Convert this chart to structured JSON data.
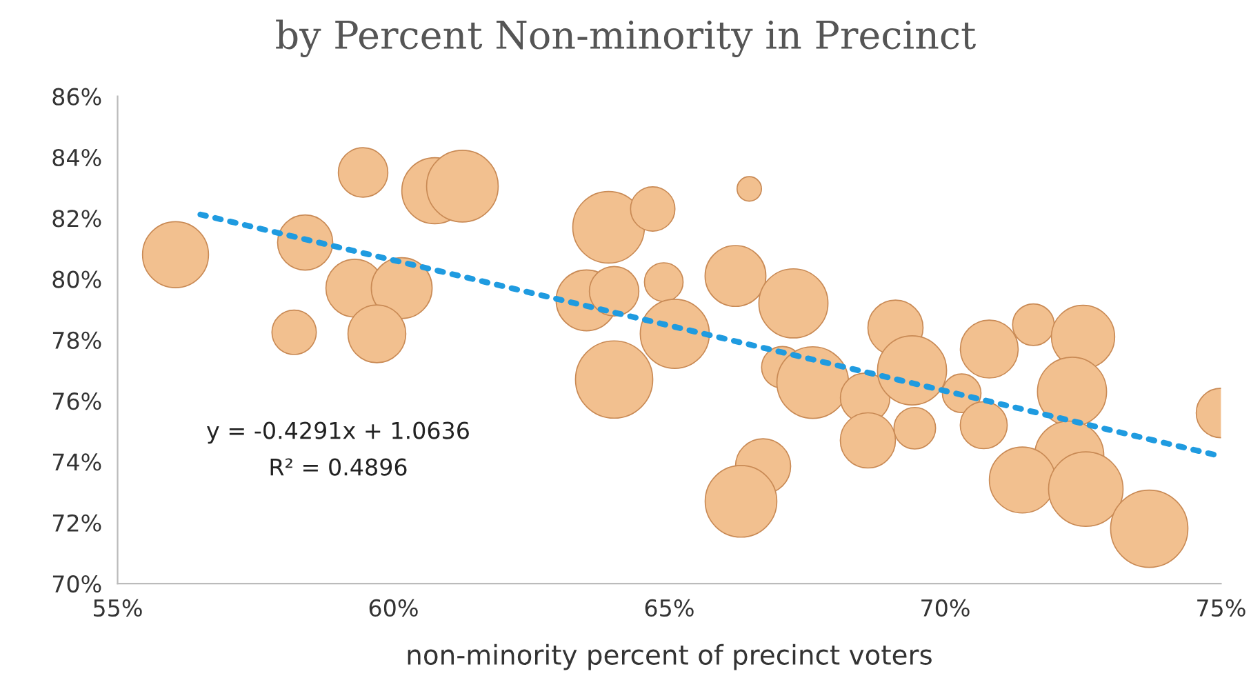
{
  "chart_data": {
    "type": "bubble",
    "title": "by Percent Non-minority in Precinct",
    "xlabel": "non-minority percent of precinct voters",
    "xlim": [
      55,
      75
    ],
    "ylim": [
      70,
      86
    ],
    "xticks": [
      {
        "value": 55,
        "label": "55%"
      },
      {
        "value": 60,
        "label": "60%"
      },
      {
        "value": 65,
        "label": "65%"
      },
      {
        "value": 70,
        "label": "70%"
      },
      {
        "value": 75,
        "label": "75%"
      }
    ],
    "yticks": [
      {
        "value": 70,
        "label": "70%"
      },
      {
        "value": 72,
        "label": "72%"
      },
      {
        "value": 74,
        "label": "74%"
      },
      {
        "value": 76,
        "label": "76%"
      },
      {
        "value": 78,
        "label": "78%"
      },
      {
        "value": 80,
        "label": "80%"
      },
      {
        "value": 82,
        "label": "82%"
      },
      {
        "value": 84,
        "label": "84%"
      },
      {
        "value": 86,
        "label": "86%"
      }
    ],
    "grid": false,
    "annotations": [
      "y = -0.4291x + 1.0636",
      "R² = 0.4896"
    ],
    "series": [
      {
        "color": "#f2c08f",
        "marker": "circle",
        "x": [
          56.05,
          59.45,
          60.75,
          61.25,
          58.4,
          59.3,
          60.15,
          58.2,
          59.7,
          63.9,
          64.7,
          63.5,
          64.0,
          64.0,
          64.9,
          65.1,
          66.45,
          66.2,
          67.25,
          67.05,
          67.6,
          68.55,
          69.1,
          69.4,
          68.6,
          69.45,
          70.3,
          70.7,
          70.8,
          71.6,
          72.5,
          72.3,
          75.0,
          72.25,
          71.4,
          72.55,
          73.7,
          66.7,
          66.3
        ],
        "values": [
          80.8,
          83.5,
          82.9,
          83.05,
          81.2,
          79.7,
          79.7,
          78.25,
          78.2,
          81.7,
          82.3,
          79.3,
          79.6,
          76.7,
          79.9,
          78.2,
          82.96,
          80.1,
          79.2,
          77.1,
          76.6,
          76.1,
          78.4,
          77.0,
          74.7,
          75.1,
          76.25,
          75.2,
          77.7,
          78.5,
          78.1,
          76.3,
          75.6,
          74.2,
          73.4,
          73.1,
          71.8,
          73.85,
          72.7
        ],
        "sizes": [
          0.73,
          0.41,
          0.73,
          0.86,
          0.51,
          0.56,
          0.62,
          0.33,
          0.56,
          0.86,
          0.33,
          0.62,
          0.41,
          1.0,
          0.25,
          0.8,
          0.1,
          0.62,
          0.8,
          0.29,
          0.86,
          0.41,
          0.51,
          0.8,
          0.51,
          0.29,
          0.25,
          0.37,
          0.56,
          0.29,
          0.67,
          0.8,
          0.41,
          0.8,
          0.73,
          0.93,
          1.0,
          0.51,
          0.86
        ]
      },
      {
        "type": "line",
        "color": "#1f9be0",
        "line_style": "dotted",
        "marker": "none",
        "x": [
          56.5,
          75
        ],
        "values": [
          82.12,
          74.18
        ]
      }
    ]
  }
}
